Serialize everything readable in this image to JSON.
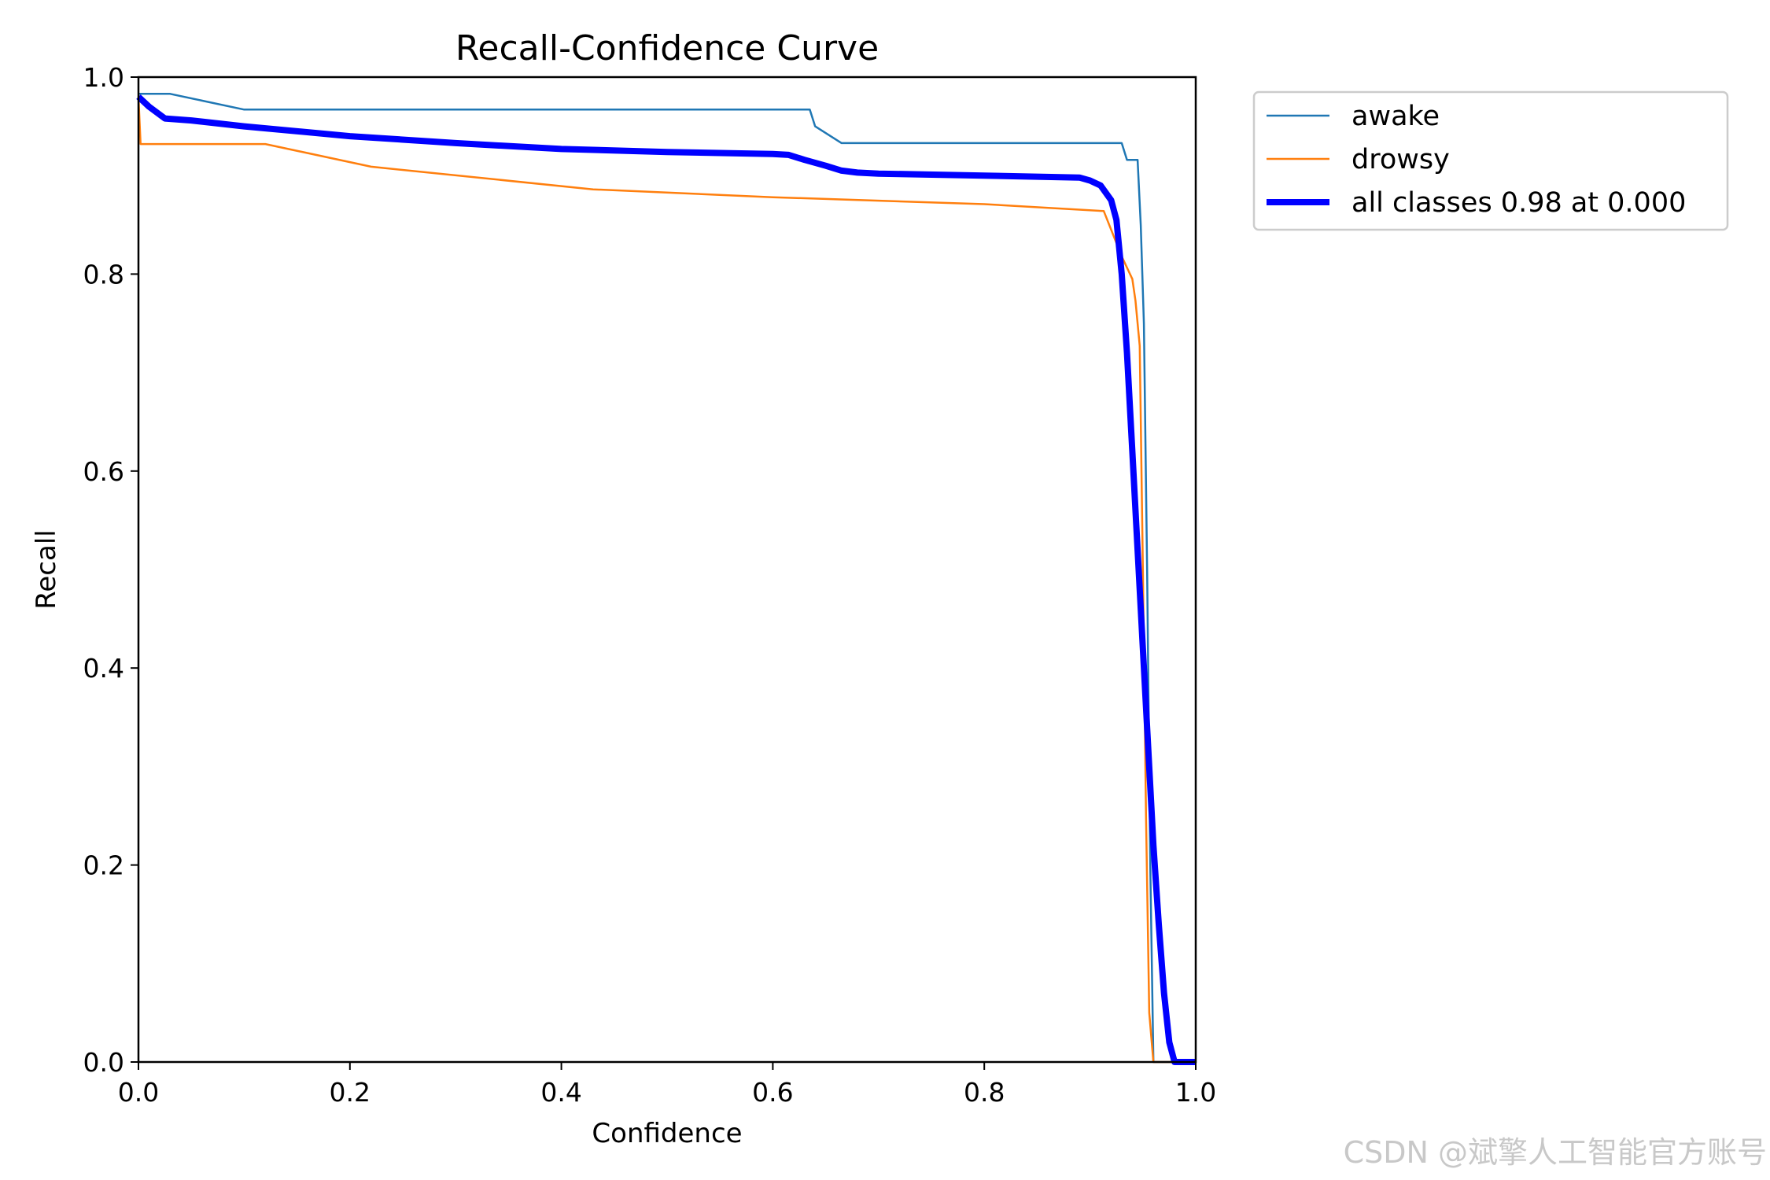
{
  "chart_data": {
    "type": "line",
    "title": "Recall-Confidence Curve",
    "xlabel": "Confidence",
    "ylabel": "Recall",
    "xlim": [
      0,
      1
    ],
    "ylim": [
      0,
      1
    ],
    "xticks": [
      "0.0",
      "0.2",
      "0.4",
      "0.6",
      "0.8",
      "1.0"
    ],
    "yticks": [
      "0.0",
      "0.2",
      "0.4",
      "0.6",
      "0.8",
      "1.0"
    ],
    "grid": false,
    "legend_position": "outside-top-right",
    "series": [
      {
        "name": "awake",
        "color": "#1f77b4",
        "x": [
          0.0,
          0.03,
          0.1,
          0.2,
          0.4,
          0.6,
          0.635,
          0.64,
          0.665,
          0.7,
          0.8,
          0.93,
          0.935,
          0.94,
          0.945,
          0.948,
          0.951,
          0.954,
          0.957,
          0.96,
          1.0
        ],
        "y": [
          0.983,
          0.983,
          0.967,
          0.967,
          0.967,
          0.967,
          0.967,
          0.95,
          0.933,
          0.933,
          0.933,
          0.933,
          0.916,
          0.916,
          0.916,
          0.85,
          0.75,
          0.5,
          0.2,
          0.0,
          0.0
        ]
      },
      {
        "name": "drowsy",
        "color": "#ff7f0e",
        "x": [
          0.0,
          0.002,
          0.12,
          0.22,
          0.43,
          0.6,
          0.8,
          0.913,
          0.93,
          0.94,
          0.943,
          0.947,
          0.95,
          0.953,
          0.956,
          0.96,
          0.962,
          1.0
        ],
        "y": [
          0.98,
          0.932,
          0.932,
          0.909,
          0.886,
          0.878,
          0.871,
          0.864,
          0.818,
          0.795,
          0.773,
          0.727,
          0.5,
          0.25,
          0.05,
          0.0,
          0.0,
          0.0
        ]
      },
      {
        "name": "all classes 0.98 at 0.000",
        "color": "#0000ff",
        "emphasis": "thick",
        "x": [
          0.0,
          0.01,
          0.025,
          0.05,
          0.1,
          0.2,
          0.3,
          0.4,
          0.5,
          0.6,
          0.615,
          0.63,
          0.65,
          0.665,
          0.68,
          0.7,
          0.8,
          0.89,
          0.9,
          0.91,
          0.92,
          0.925,
          0.93,
          0.935,
          0.94,
          0.945,
          0.95,
          0.955,
          0.96,
          0.965,
          0.97,
          0.975,
          0.98,
          0.985,
          0.99,
          1.0
        ],
        "y": [
          0.98,
          0.97,
          0.958,
          0.956,
          0.95,
          0.94,
          0.933,
          0.927,
          0.924,
          0.922,
          0.921,
          0.916,
          0.91,
          0.905,
          0.903,
          0.902,
          0.9,
          0.898,
          0.895,
          0.89,
          0.875,
          0.855,
          0.8,
          0.72,
          0.62,
          0.52,
          0.42,
          0.32,
          0.22,
          0.14,
          0.07,
          0.02,
          0.0,
          0.0,
          0.0,
          0.0
        ]
      }
    ]
  },
  "watermark": "CSDN @斌擎人工智能官方账号"
}
